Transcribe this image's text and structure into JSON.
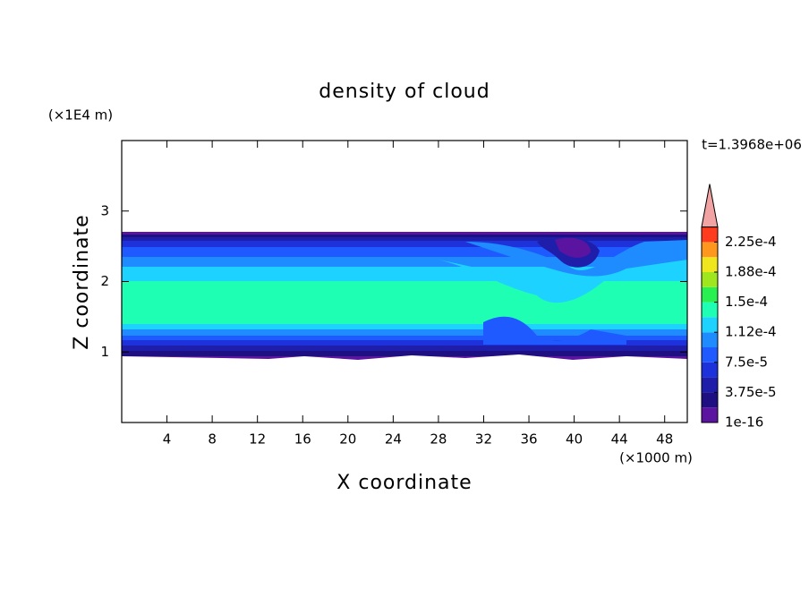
{
  "chart_data": {
    "type": "contour",
    "title": "density of cloud",
    "x_label": "X coordinate",
    "y_label": "Z coordinate",
    "x_unit": "(×1000 m)",
    "y_unit": "(×1E4 m)",
    "annotation": "t=1.3968e+06",
    "xlim": [
      0,
      50
    ],
    "xticks": [
      4,
      8,
      12,
      16,
      20,
      24,
      28,
      32,
      36,
      40,
      44,
      48
    ],
    "ylim": [
      0,
      4
    ],
    "yticks": [
      1,
      2,
      3
    ],
    "colorbar": {
      "clim": [
        1e-16,
        0.00024375
      ],
      "ticks": [
        1e-16,
        {
          "value": 3.75e-05,
          "label": "3.75e-5"
        },
        {
          "value": 7.5e-05,
          "label": "7.5e-5"
        },
        {
          "value": 0.0001125,
          "label": "1.12e-4"
        },
        {
          "value": 0.00015,
          "label": "1.5e-4"
        },
        {
          "value": 0.0001875,
          "label": "1.88e-4"
        },
        {
          "value": 0.000225,
          "label": "2.25e-4"
        }
      ],
      "colors": [
        "#5a14a0",
        "#1e0f82",
        "#1e1eaa",
        "#1e32dc",
        "#1e5aff",
        "#1e8cff",
        "#1ed2ff",
        "#1effb4",
        "#28f050",
        "#a0e61e",
        "#f0e61e",
        "#ff961e",
        "#ff3c1e"
      ],
      "overflow_color": "#f2a3a3"
    }
  }
}
